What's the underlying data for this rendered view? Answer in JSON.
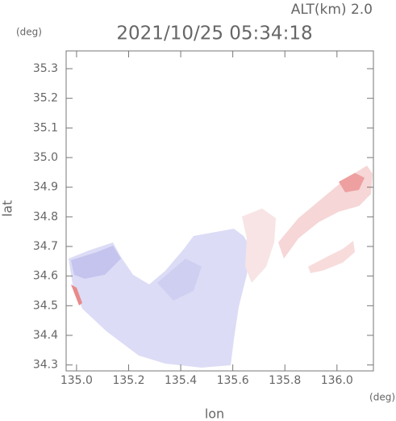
{
  "chart_data": {
    "type": "map",
    "title": "2021/10/25 05:34:18",
    "subtitle": "ALT(km) 2.0",
    "xlabel": "lon",
    "ylabel": "lat",
    "xunit": "(deg)",
    "yunit": "(deg)",
    "xlim": [
      134.96,
      136.14
    ],
    "ylim": [
      34.28,
      35.36
    ],
    "xticks": [
      {
        "value": 135,
        "label": "135.0"
      },
      135.2,
      135.4,
      135.6,
      135.8,
      {
        "value": 136,
        "label": "136.0"
      }
    ],
    "yticks": [
      34.3,
      34.4,
      34.5,
      34.6,
      34.7,
      34.8,
      34.9,
      {
        "value": 35,
        "label": "35.0"
      },
      35.1,
      35.2,
      35.3
    ]
  }
}
